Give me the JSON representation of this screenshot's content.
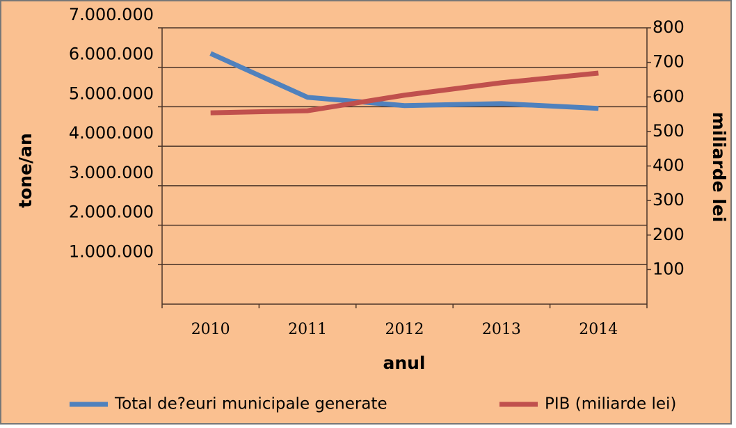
{
  "chart_data": {
    "type": "line",
    "xlabel": "anul",
    "ylabel": "tone/an",
    "y2label": "miliarde lei",
    "categories": [
      "2010",
      "2011",
      "2012",
      "2013",
      "2014"
    ],
    "series": [
      {
        "name": "Total de?euri municipale generate",
        "color": "#4f81bd",
        "values": [
          6350000,
          5240000,
          5030000,
          5080000,
          4960000
        ]
      },
      {
        "name": "PIB (miliarde lei)",
        "color": "#c0504d",
        "axis": "y2",
        "values": [
          554,
          560,
          605,
          641,
          669
        ]
      }
    ],
    "ylim": [
      0,
      7000000
    ],
    "yticks": [
      {
        "value": 1000000,
        "label": "1.000.000"
      },
      {
        "value": 2000000,
        "label": "2.000.000"
      },
      {
        "value": 3000000,
        "label": "3.000.000"
      },
      {
        "value": 4000000,
        "label": "4.000.000"
      },
      {
        "value": 5000000,
        "label": "5.000.000"
      },
      {
        "value": 6000000,
        "label": "6.000.000"
      },
      {
        "value": 7000000,
        "label": "7.000.000"
      }
    ],
    "y2lim": [
      0,
      800
    ],
    "y2ticks": [
      100,
      200,
      300,
      400,
      500,
      600,
      700,
      800
    ],
    "grid": true,
    "legend": "bottom"
  }
}
